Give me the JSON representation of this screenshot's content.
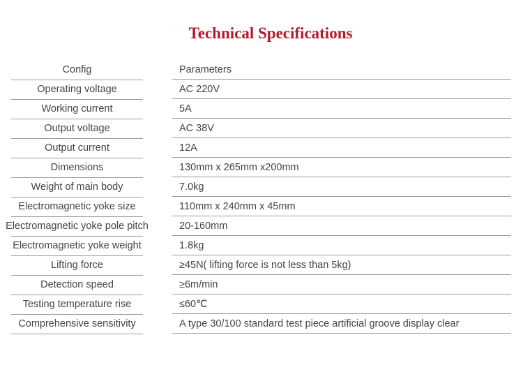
{
  "title": "Technical Specifications",
  "title_color": "#b31b2c",
  "header": {
    "config": "Config",
    "parameters": "Parameters"
  },
  "rows": [
    {
      "config": "Operating voltage",
      "value": "AC 220V"
    },
    {
      "config": "Working current",
      "value": "5A"
    },
    {
      "config": "Output voltage",
      "value": "AC 38V"
    },
    {
      "config": "Output current",
      "value": "12A"
    },
    {
      "config": "Dimensions",
      "value": "130mm x 265mm x200mm"
    },
    {
      "config": "Weight of main body",
      "value": "7.0kg"
    },
    {
      "config": "Electromagnetic yoke size",
      "value": "110mm x 240mm x 45mm"
    },
    {
      "config": "Electromagnetic yoke pole pitch",
      "value": "20-160mm"
    },
    {
      "config": "Electromagnetic yoke weight",
      "value": "1.8kg"
    },
    {
      "config": "Lifting force",
      "value": "≥45N( lifting force is not less than 5kg)"
    },
    {
      "config": "Detection speed",
      "value": "≥6m/min"
    },
    {
      "config": "Testing temperature rise",
      "value": "≤60℃"
    },
    {
      "config": "Comprehensive sensitivity",
      "value": "A type 30/100 standard test piece artificial groove display clear"
    }
  ]
}
